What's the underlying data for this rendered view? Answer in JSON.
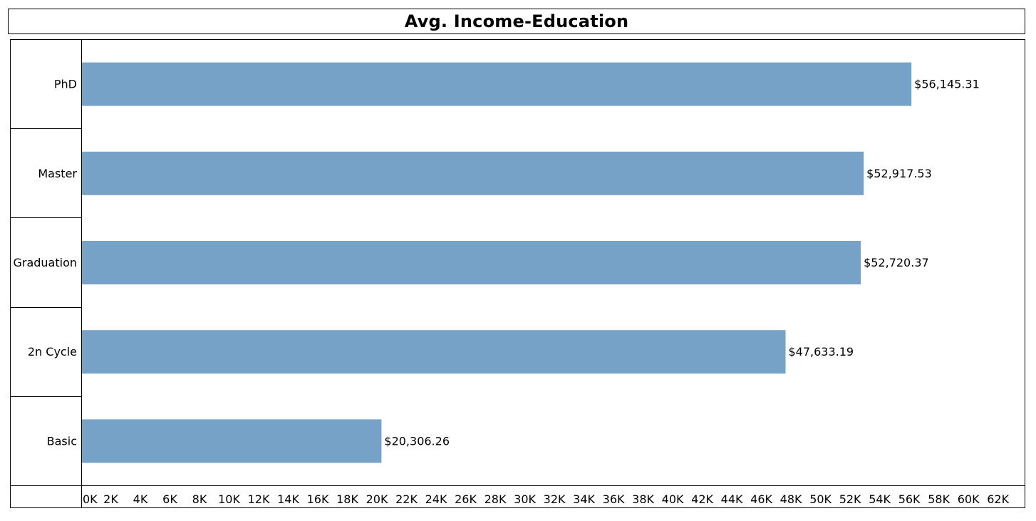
{
  "chart_data": {
    "type": "bar",
    "orientation": "horizontal",
    "title": "Avg. Income-Education",
    "categories": [
      "PhD",
      "Master",
      "Graduation",
      "2n Cycle",
      "Basic"
    ],
    "values": [
      56145.31,
      52917.53,
      52720.37,
      47633.19,
      20306.26
    ],
    "value_labels": [
      "$56,145.31",
      "$52,917.53",
      "$52,720.37",
      "$47,633.19",
      "$20,306.26"
    ],
    "x_ticks": [
      0,
      2000,
      4000,
      6000,
      8000,
      10000,
      12000,
      14000,
      16000,
      18000,
      20000,
      22000,
      24000,
      26000,
      28000,
      30000,
      32000,
      34000,
      36000,
      38000,
      40000,
      42000,
      44000,
      46000,
      48000,
      50000,
      52000,
      54000,
      56000,
      58000,
      60000,
      62000
    ],
    "x_tick_labels": [
      "0K",
      "2K",
      "4K",
      "6K",
      "8K",
      "10K",
      "12K",
      "14K",
      "16K",
      "18K",
      "20K",
      "22K",
      "24K",
      "26K",
      "28K",
      "30K",
      "32K",
      "34K",
      "36K",
      "38K",
      "40K",
      "42K",
      "44K",
      "46K",
      "48K",
      "50K",
      "52K",
      "54K",
      "56K",
      "58K",
      "60K",
      "62K"
    ],
    "xlim": [
      0,
      63800
    ],
    "grid": false,
    "legend": "none",
    "bar_color": "#76a2c7"
  }
}
